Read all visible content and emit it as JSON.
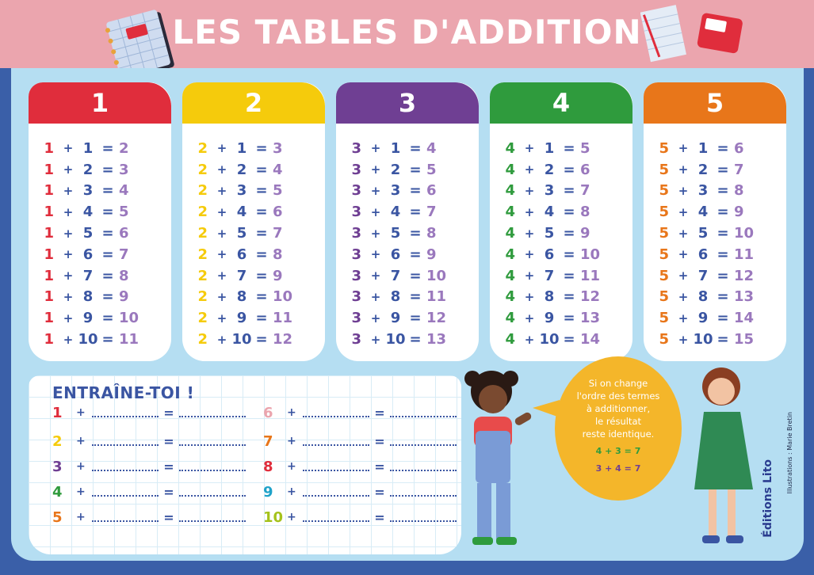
{
  "title": "LES TABLES D'ADDITION",
  "colors": {
    "header": "#eba5ae",
    "panel": "#b5def2",
    "blue": "#3a55a2",
    "violet": "#9a78bd",
    "t1": "#e02d3c",
    "t2": "#f5cb0c",
    "t3": "#6f3f93",
    "t4": "#2f9b3d",
    "t5": "#e8761a"
  },
  "tables": [
    {
      "label": "1",
      "color": "#e02d3c",
      "rows": [
        {
          "a": "1",
          "b": "1",
          "r": "2"
        },
        {
          "a": "1",
          "b": "2",
          "r": "3"
        },
        {
          "a": "1",
          "b": "3",
          "r": "4"
        },
        {
          "a": "1",
          "b": "4",
          "r": "5"
        },
        {
          "a": "1",
          "b": "5",
          "r": "6"
        },
        {
          "a": "1",
          "b": "6",
          "r": "7"
        },
        {
          "a": "1",
          "b": "7",
          "r": "8"
        },
        {
          "a": "1",
          "b": "8",
          "r": "9"
        },
        {
          "a": "1",
          "b": "9",
          "r": "10"
        },
        {
          "a": "1",
          "b": "10",
          "r": "11"
        }
      ]
    },
    {
      "label": "2",
      "color": "#f5cb0c",
      "rows": [
        {
          "a": "2",
          "b": "1",
          "r": "3"
        },
        {
          "a": "2",
          "b": "2",
          "r": "4"
        },
        {
          "a": "2",
          "b": "3",
          "r": "5"
        },
        {
          "a": "2",
          "b": "4",
          "r": "6"
        },
        {
          "a": "2",
          "b": "5",
          "r": "7"
        },
        {
          "a": "2",
          "b": "6",
          "r": "8"
        },
        {
          "a": "2",
          "b": "7",
          "r": "9"
        },
        {
          "a": "2",
          "b": "8",
          "r": "10"
        },
        {
          "a": "2",
          "b": "9",
          "r": "11"
        },
        {
          "a": "2",
          "b": "10",
          "r": "12"
        }
      ]
    },
    {
      "label": "3",
      "color": "#6f3f93",
      "rows": [
        {
          "a": "3",
          "b": "1",
          "r": "4"
        },
        {
          "a": "3",
          "b": "2",
          "r": "5"
        },
        {
          "a": "3",
          "b": "3",
          "r": "6"
        },
        {
          "a": "3",
          "b": "4",
          "r": "7"
        },
        {
          "a": "3",
          "b": "5",
          "r": "8"
        },
        {
          "a": "3",
          "b": "6",
          "r": "9"
        },
        {
          "a": "3",
          "b": "7",
          "r": "10"
        },
        {
          "a": "3",
          "b": "8",
          "r": "11"
        },
        {
          "a": "3",
          "b": "9",
          "r": "12"
        },
        {
          "a": "3",
          "b": "10",
          "r": "13"
        }
      ]
    },
    {
      "label": "4",
      "color": "#2f9b3d",
      "rows": [
        {
          "a": "4",
          "b": "1",
          "r": "5"
        },
        {
          "a": "4",
          "b": "2",
          "r": "6"
        },
        {
          "a": "4",
          "b": "3",
          "r": "7"
        },
        {
          "a": "4",
          "b": "4",
          "r": "8"
        },
        {
          "a": "4",
          "b": "5",
          "r": "9"
        },
        {
          "a": "4",
          "b": "6",
          "r": "10"
        },
        {
          "a": "4",
          "b": "7",
          "r": "11"
        },
        {
          "a": "4",
          "b": "8",
          "r": "12"
        },
        {
          "a": "4",
          "b": "9",
          "r": "13"
        },
        {
          "a": "4",
          "b": "10",
          "r": "14"
        }
      ]
    },
    {
      "label": "5",
      "color": "#e8761a",
      "rows": [
        {
          "a": "5",
          "b": "1",
          "r": "6"
        },
        {
          "a": "5",
          "b": "2",
          "r": "7"
        },
        {
          "a": "5",
          "b": "3",
          "r": "8"
        },
        {
          "a": "5",
          "b": "4",
          "r": "9"
        },
        {
          "a": "5",
          "b": "5",
          "r": "10"
        },
        {
          "a": "5",
          "b": "6",
          "r": "11"
        },
        {
          "a": "5",
          "b": "7",
          "r": "12"
        },
        {
          "a": "5",
          "b": "8",
          "r": "13"
        },
        {
          "a": "5",
          "b": "9",
          "r": "14"
        },
        {
          "a": "5",
          "b": "10",
          "r": "15"
        }
      ]
    }
  ],
  "practice": {
    "title": "ENTRAÎNE-TOI !",
    "plus": "+",
    "equals": "=",
    "left": [
      {
        "n": "1",
        "color": "#e02d3c"
      },
      {
        "n": "2",
        "color": "#f5cb0c"
      },
      {
        "n": "3",
        "color": "#6f3f93"
      },
      {
        "n": "4",
        "color": "#2f9b3d"
      },
      {
        "n": "5",
        "color": "#e8761a"
      }
    ],
    "right": [
      {
        "n": "6",
        "color": "#eba5ae"
      },
      {
        "n": "7",
        "color": "#e8761a"
      },
      {
        "n": "8",
        "color": "#e02d3c"
      },
      {
        "n": "9",
        "color": "#1ea2c9"
      },
      {
        "n": "10",
        "color": "#a5c21b"
      }
    ]
  },
  "bubble": {
    "lines": [
      "Si on change",
      "l'ordre des termes",
      "à additionner,",
      "le résultat",
      "reste identique."
    ],
    "eq1": "4 + 3 = 7",
    "eq2": "3 + 4 = 7"
  },
  "credit": "Illustrations : Marie Bretin",
  "logo": {
    "small": "Éditions",
    "name": "Lito"
  }
}
